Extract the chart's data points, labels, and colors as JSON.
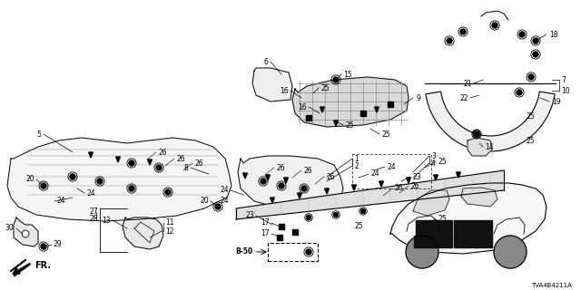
{
  "background_color": "#ffffff",
  "diagram_ref": "TVA4B4211A",
  "figsize": [
    6.4,
    3.2
  ],
  "dpi": 100,
  "line_color": "#000000",
  "label_fontsize": 5.5,
  "parts": {
    "front_mat": {
      "color": "#f2f2f2",
      "outline": "#000000"
    },
    "rear_mat": {
      "color": "#f2f2f2",
      "outline": "#000000"
    },
    "sill": {
      "color": "#e8e8e8",
      "outline": "#000000"
    },
    "wheel_arch": {
      "color": "#f2f2f2",
      "outline": "#000000"
    },
    "cargo_mat": {
      "color": "#d0d0d0",
      "outline": "#000000"
    }
  }
}
